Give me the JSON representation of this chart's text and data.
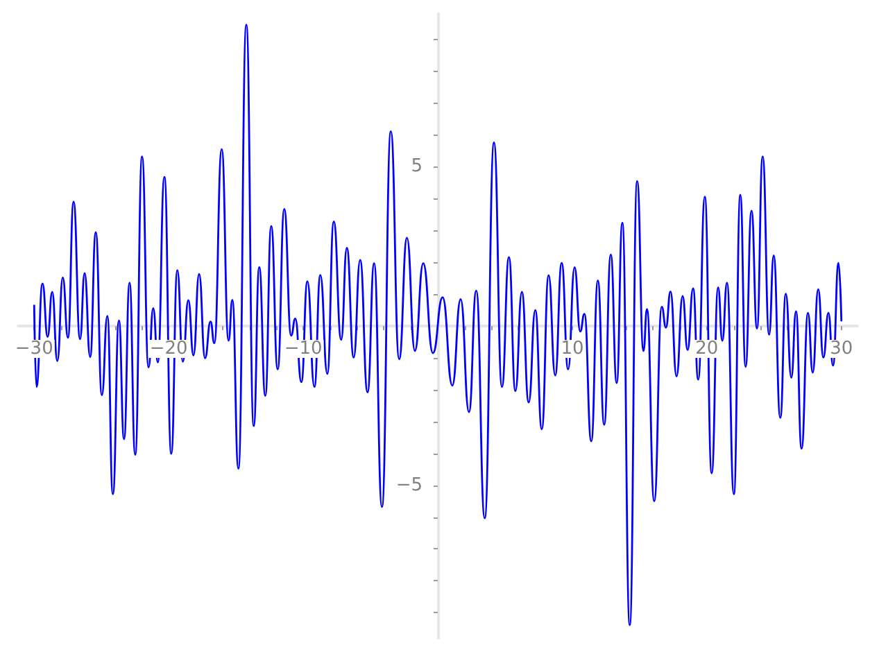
{
  "chart_data": {
    "type": "line",
    "color": "#0000ff",
    "marker": "none",
    "line_style": "solid",
    "grid": false,
    "xlim": [
      -31.2,
      31.2
    ],
    "ylim": [
      -9.8,
      9.8
    ],
    "xticks": [
      {
        "value": -30,
        "label": "−30"
      },
      {
        "value": -28,
        "label": null
      },
      {
        "value": -26,
        "label": null
      },
      {
        "value": -24,
        "label": null
      },
      {
        "value": -22,
        "label": null
      },
      {
        "value": -20,
        "label": "−20"
      },
      {
        "value": -18,
        "label": null
      },
      {
        "value": -16,
        "label": null
      },
      {
        "value": -14,
        "label": null
      },
      {
        "value": -12,
        "label": null
      },
      {
        "value": -10,
        "label": "−10"
      },
      {
        "value": -8,
        "label": null
      },
      {
        "value": -6,
        "label": null
      },
      {
        "value": -4,
        "label": null
      },
      {
        "value": -2,
        "label": null
      },
      {
        "value": 2,
        "label": null
      },
      {
        "value": 4,
        "label": null
      },
      {
        "value": 6,
        "label": null
      },
      {
        "value": 8,
        "label": null
      },
      10,
      {
        "value": 12,
        "label": null
      },
      {
        "value": 14,
        "label": null
      },
      {
        "value": 16,
        "label": null
      },
      {
        "value": 18,
        "label": null
      },
      20,
      {
        "value": 22,
        "label": null
      },
      {
        "value": 24,
        "label": null
      },
      {
        "value": 26,
        "label": null
      },
      {
        "value": 28,
        "label": null
      },
      30
    ],
    "yticks": [
      {
        "value": -9,
        "label": null
      },
      {
        "value": -8,
        "label": null
      },
      {
        "value": -7,
        "label": null
      },
      {
        "value": -6,
        "label": null
      },
      {
        "value": -5,
        "label": "−5"
      },
      {
        "value": -4,
        "label": null
      },
      {
        "value": -3,
        "label": null
      },
      {
        "value": -2,
        "label": null
      },
      {
        "value": -1,
        "label": null
      },
      {
        "value": 1,
        "label": null
      },
      {
        "value": 2,
        "label": null
      },
      {
        "value": 3,
        "label": null
      },
      {
        "value": 4,
        "label": null
      },
      5,
      {
        "value": 6,
        "label": null
      },
      {
        "value": 7,
        "label": null
      },
      {
        "value": 8,
        "label": null
      },
      {
        "value": 9,
        "label": null
      }
    ],
    "x": [
      -30.0,
      -29.83,
      -29.38,
      -29.0,
      -28.66,
      -28.28,
      -27.87,
      -27.49,
      -27.07,
      -26.59,
      -26.25,
      -25.84,
      -25.42,
      -24.97,
      -24.56,
      -24.15,
      -23.7,
      -23.32,
      -22.91,
      -22.49,
      -21.98,
      -21.5,
      -21.15,
      -20.81,
      -20.32,
      -19.81,
      -19.36,
      -18.95,
      -18.54,
      -18.16,
      -17.74,
      -17.3,
      -16.89,
      -16.61,
      -16.06,
      -15.55,
      -15.27,
      -14.82,
      -14.23,
      -13.68,
      -13.27,
      -12.82,
      -12.38,
      -11.9,
      -11.41,
      -10.9,
      -10.59,
      -10.14,
      -9.69,
      -9.17,
      -8.73,
      -8.21,
      -7.73,
      -7.18,
      -6.76,
      -6.25,
      -5.77,
      -5.22,
      -4.73,
      -4.15,
      -3.49,
      -2.87,
      -2.29,
      -1.7,
      -1.08,
      -0.36,
      0.36,
      1.08,
      1.7,
      2.32,
      2.86,
      3.49,
      4.18,
      4.77,
      5.29,
      5.77,
      6.25,
      6.76,
      7.25,
      7.73,
      8.24,
      8.73,
      9.21,
      9.69,
      10.17,
      10.59,
      10.9,
      11.41,
      11.9,
      12.37,
      12.86,
      13.3,
      13.72,
      14.27,
      14.82,
      15.29,
      15.55,
      16.09,
      16.65,
      16.96,
      17.3,
      17.75,
      18.2,
      18.57,
      18.98,
      19.36,
      19.85,
      20.36,
      20.84,
      21.15,
      21.5,
      22.01,
      22.49,
      22.88,
      23.32,
      23.73,
      24.15,
      24.63,
      24.97,
      25.46,
      25.87,
      26.28,
      26.63,
      27.04,
      27.52,
      27.87,
      28.28,
      28.66,
      29.04,
      29.38,
      29.79,
      30.0
    ],
    "values": [
      0.64,
      -1.91,
      1.33,
      -0.34,
      1.07,
      -1.1,
      1.52,
      -0.37,
      3.9,
      -0.41,
      1.66,
      -0.97,
      2.94,
      -2.17,
      0.31,
      -5.28,
      0.17,
      -3.55,
      1.36,
      -4.04,
      5.32,
      -1.3,
      0.56,
      -1.14,
      4.68,
      -4.01,
      1.75,
      -1.12,
      0.81,
      -0.92,
      1.63,
      -1.01,
      0.14,
      -0.54,
      5.55,
      -0.46,
      0.82,
      -4.48,
      9.46,
      -3.14,
      1.85,
      -2.19,
      3.14,
      -1.36,
      3.67,
      -0.3,
      0.23,
      -1.76,
      1.4,
      -1.91,
      1.6,
      -1.5,
      3.28,
      -0.43,
      2.45,
      -0.99,
      2.07,
      -2.08,
      1.97,
      -5.68,
      6.11,
      -1.04,
      2.77,
      -0.78,
      1.97,
      -0.85,
      0.9,
      -1.87,
      0.84,
      -2.7,
      1.11,
      -6.03,
      5.76,
      -1.91,
      2.16,
      -2.04,
      1.07,
      -2.4,
      0.5,
      -3.24,
      1.59,
      -1.55,
      1.98,
      -1.36,
      1.84,
      -0.17,
      0.38,
      -3.62,
      1.43,
      -3.1,
      2.24,
      -1.79,
      3.24,
      -9.39,
      4.55,
      -0.78,
      0.53,
      -5.5,
      0.6,
      -0.05,
      1.08,
      -1.58,
      0.94,
      -0.75,
      1.18,
      -1.68,
      4.06,
      -4.62,
      1.21,
      -0.46,
      1.36,
      -5.28,
      4.12,
      -1.28,
      3.62,
      -0.08,
      5.32,
      -0.27,
      2.21,
      -2.88,
      1.01,
      -1.62,
      0.46,
      -3.85,
      0.41,
      -1.46,
      1.15,
      -0.99,
      0.41,
      -1.24,
      1.98,
      0.17
    ]
  }
}
